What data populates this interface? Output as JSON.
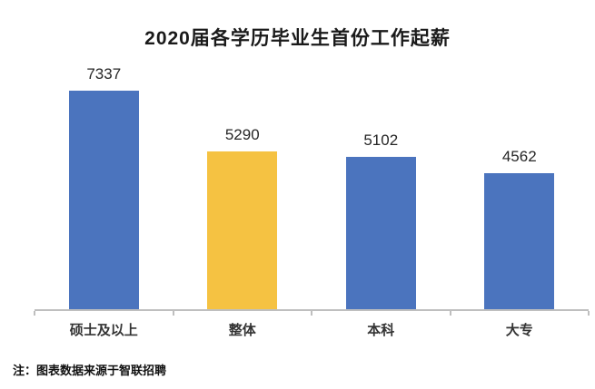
{
  "title": "2020届各学历毕业生首份工作起薪",
  "source_note": "注：图表数据来源于智联招聘",
  "colors": {
    "bar_blue": "#4b74be",
    "bar_highlight_yellow": "#f5c242",
    "axis_gray": "#bfbfbf",
    "title_text": "#1a1a1a"
  },
  "chart_data": {
    "type": "bar",
    "title": "2020届各学历毕业生首份工作起薪",
    "categories": [
      "硕士及以上",
      "整体",
      "本科",
      "大专"
    ],
    "values": [
      7337,
      5290,
      5102,
      4562
    ],
    "bar_colors": [
      "#4b74be",
      "#f5c242",
      "#4b74be",
      "#4b74be"
    ],
    "category_slugs": [
      "masters-and-above",
      "overall",
      "bachelor",
      "junior-college"
    ],
    "xlabel": "",
    "ylabel": "",
    "ylim": [
      0,
      7800
    ],
    "grid": false,
    "legend_position": "none",
    "data_labels": true,
    "source_note": "注：图表数据来源于智联招聘"
  }
}
